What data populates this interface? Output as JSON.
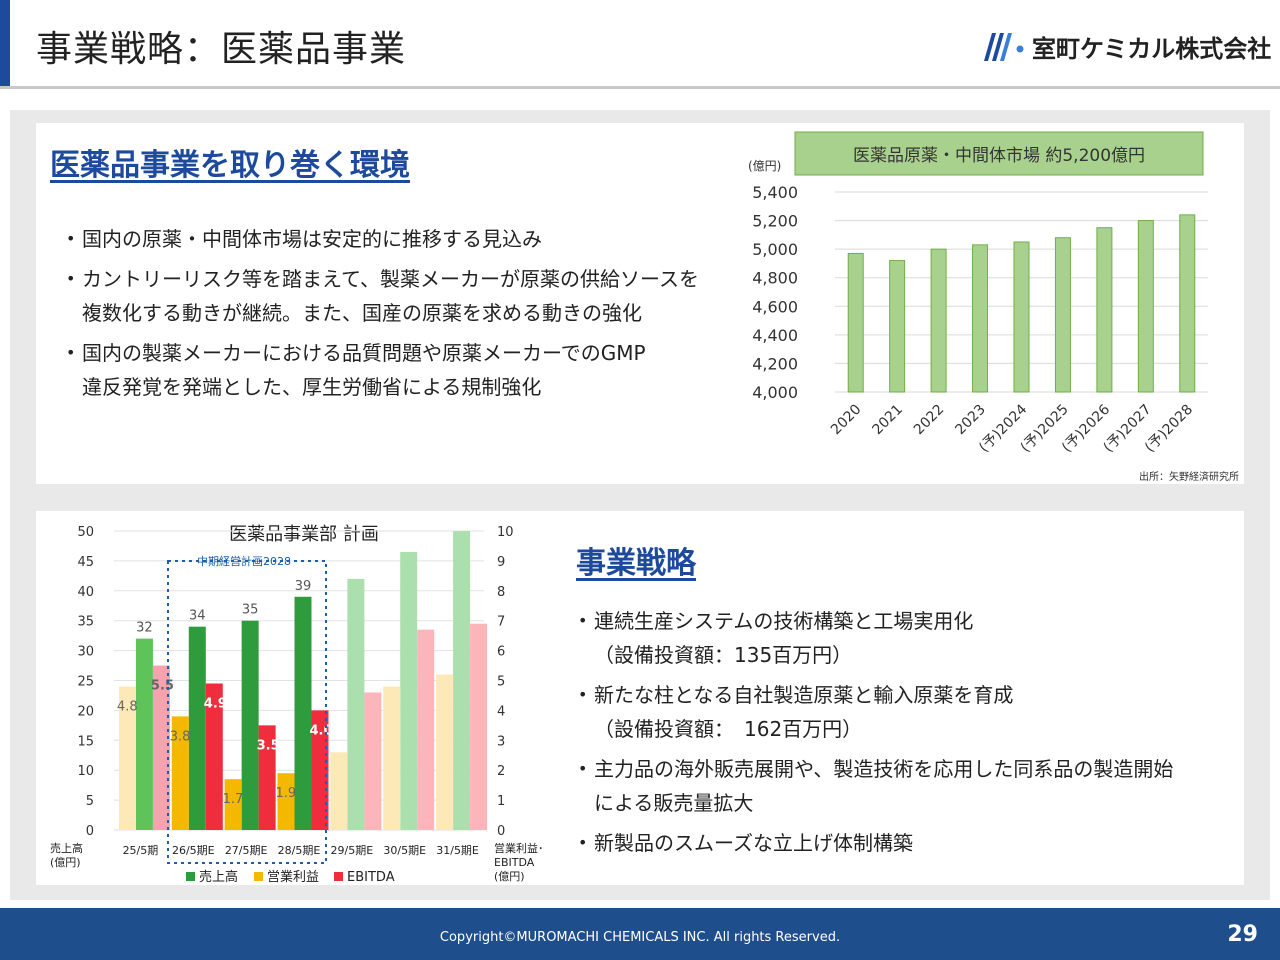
{
  "header": {
    "title": "事業戦略：医薬品事業",
    "company": "室町ケミカル株式会社"
  },
  "env_section": {
    "heading": "医薬品事業を取り巻く環境",
    "bullets": [
      {
        "line1": "国内の原薬・中間体市場は安定的に推移する見込み",
        "line2": ""
      },
      {
        "line1": "カントリーリスク等を踏まえて、製薬メーカーが原薬の供給ソースを",
        "line2": "複数化する動きが継続。また、国産の原薬を求める動きの強化"
      },
      {
        "line1": "国内の製薬メーカーにおける品質問題や原薬メーカーでのGMP",
        "line2": "違反発覚を発端とした、厚生労働省による規制強化"
      }
    ]
  },
  "strategy_section": {
    "heading": "事業戦略",
    "bullets": [
      {
        "line1": "連続生産システムの技術構築と工場実用化",
        "line2": "（設備投資額：135百万円）"
      },
      {
        "line1": "新たな柱となる自社製造原薬と輸入原薬を育成",
        "line2": "（設備投資額：　162百万円）"
      },
      {
        "line1": "主力品の海外販売展開や、製造技術を応用した同系品の製造開始",
        "line2": "による販売量拡大"
      },
      {
        "line1": "新製品のスムーズな立上げ体制構築",
        "line2": ""
      }
    ]
  },
  "chart_data": [
    {
      "type": "bar",
      "title": "医薬品原薬・中間体市場  約5,200億円",
      "ylabel": "(億円)",
      "categories": [
        "2020",
        "2021",
        "2022",
        "2023",
        "(予)2024",
        "(予)2025",
        "(予)2026",
        "(予)2027",
        "(予)2028"
      ],
      "values": [
        4970,
        4920,
        5000,
        5030,
        5050,
        5080,
        5150,
        5200,
        5240
      ],
      "ylim": [
        4000,
        5400
      ],
      "yticks": [
        4000,
        4200,
        4400,
        4600,
        4800,
        5000,
        5200,
        5400
      ],
      "ytick_labels": [
        "4,000",
        "4,200",
        "4,400",
        "4,600",
        "4,800",
        "5,000",
        "5,200",
        "5,400"
      ],
      "grid": true,
      "source": "出所：矢野経済研究所",
      "bar_color": "#a9d18e",
      "bar_edge_color": "#70ad47"
    },
    {
      "type": "bar",
      "title": "医薬品事業部  計画",
      "categories": [
        "25/5期",
        "26/5期E",
        "27/5期E",
        "28/5期E",
        "29/5期E",
        "30/5期E",
        "31/5期E"
      ],
      "projected_from_index": 4,
      "left_axis": {
        "label_line1": "売上高",
        "label_line2": "(億円)",
        "ylim": [
          0,
          50
        ],
        "ticks": [
          "0",
          "5",
          "10",
          "15",
          "20",
          "25",
          "30",
          "35",
          "40",
          "45",
          "50"
        ]
      },
      "right_axis": {
        "label_line1": "営業利益･",
        "label_line2": "EBITDA",
        "label_line3": "(億円)",
        "ylim": [
          0,
          10
        ],
        "ticks": [
          "0",
          "1",
          "2",
          "3",
          "4",
          "5",
          "6",
          "7",
          "8",
          "9",
          "10"
        ]
      },
      "series": [
        {
          "name": "売上高",
          "axis": "left",
          "values": [
            32,
            34,
            35,
            39,
            42,
            46.5,
            50
          ],
          "labels": [
            "32",
            "34",
            "35",
            "39",
            "",
            "",
            ""
          ],
          "color": "#2e9c3c",
          "color_faded": "#abdfae",
          "color_first": "#5ec45a"
        },
        {
          "name": "営業利益",
          "axis": "right",
          "values": [
            4.8,
            3.8,
            1.7,
            1.9,
            2.6,
            4.8,
            5.2
          ],
          "labels": [
            "4.8",
            "3.8",
            "1.7",
            "1.9",
            "",
            "",
            ""
          ],
          "color": "#f5b800",
          "color_faded": "#fde9b8",
          "color_first": "#fde9b8"
        },
        {
          "name": "EBITDA",
          "axis": "right",
          "values": [
            5.5,
            4.9,
            3.5,
            4.0,
            4.6,
            6.7,
            6.9
          ],
          "labels": [
            "5.5",
            "4.9",
            "3.5",
            "4.0",
            "",
            "",
            ""
          ],
          "color": "#f02d3c",
          "color_faded": "#fbb5bb",
          "color_first": "#f6a3ad"
        }
      ],
      "annotation": "中期経営計画2028",
      "legend": [
        "売上高",
        "営業利益",
        "EBITDA"
      ]
    }
  ],
  "footer": {
    "copyright": "Copyright©MUROMACHI CHEMICALS INC. All rights Reserved.",
    "page": "29"
  },
  "colors": {
    "brand_blue": "#1d4a9c",
    "footer_blue": "#1f4e8c",
    "market_title_bg": "#a9d18e",
    "annotation_blue": "#1d5fa8"
  }
}
